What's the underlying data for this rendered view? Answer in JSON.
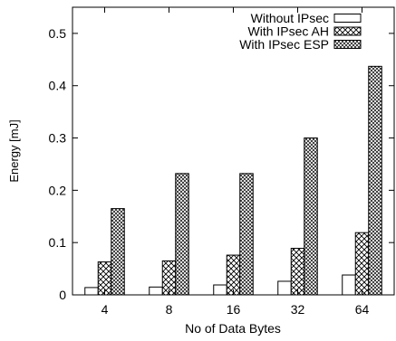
{
  "chart_data": {
    "type": "bar",
    "title": "",
    "xlabel": "No of Data Bytes",
    "ylabel": "Energy [mJ]",
    "ylim": [
      0,
      0.55
    ],
    "yticks": [
      "0",
      "0.1",
      "0.2",
      "0.3",
      "0.4",
      "0.5"
    ],
    "ytick_values": [
      0,
      0.1,
      0.2,
      0.3,
      0.4,
      0.5
    ],
    "categories": [
      "4",
      "8",
      "16",
      "32",
      "64"
    ],
    "grid": false,
    "legend_position": "top-right",
    "series": [
      {
        "name": "Without IPsec",
        "pattern": "plain",
        "values": [
          0.014,
          0.015,
          0.019,
          0.026,
          0.038
        ]
      },
      {
        "name": "With IPsec AH",
        "pattern": "crosshatch",
        "values": [
          0.063,
          0.065,
          0.076,
          0.089,
          0.119
        ]
      },
      {
        "name": "With IPsec ESP",
        "pattern": "dense-crosshatch",
        "values": [
          0.165,
          0.232,
          0.232,
          0.3,
          0.437
        ]
      }
    ]
  }
}
